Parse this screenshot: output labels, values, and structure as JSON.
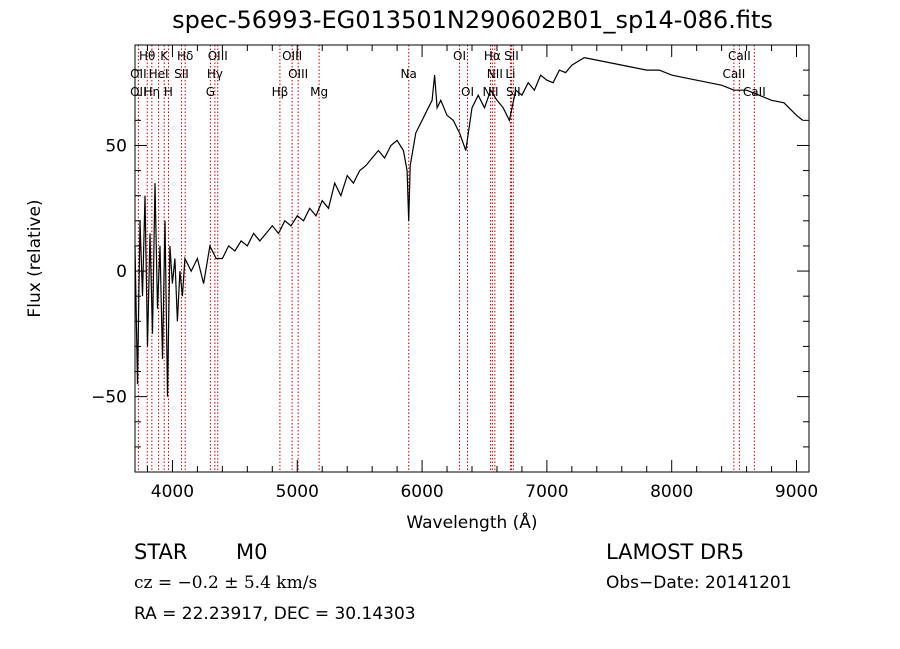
{
  "chart_data": {
    "type": "line",
    "title": "spec-56993-EG013501N290602B01_sp14-086.fits",
    "xlabel": "Wavelength (Å)",
    "ylabel": "Flux (relative)",
    "xlim": [
      3700,
      9100
    ],
    "ylim": [
      -80,
      90
    ],
    "xticks": [
      4000,
      5000,
      6000,
      7000,
      8000,
      9000
    ],
    "yticks": [
      -50,
      0,
      50
    ],
    "series": [
      {
        "x": [
          3700,
          3720,
          3740,
          3760,
          3780,
          3800,
          3820,
          3840,
          3860,
          3880,
          3900,
          3920,
          3940,
          3960,
          3980,
          4000,
          4020,
          4040,
          4060,
          4080,
          4100,
          4150,
          4200,
          4250,
          4300,
          4350,
          4400,
          4450,
          4500,
          4550,
          4600,
          4650,
          4700,
          4750,
          4800,
          4850,
          4900,
          4950,
          5000,
          5050,
          5100,
          5150,
          5200,
          5250,
          5300,
          5350,
          5400,
          5450,
          5500,
          5550,
          5600,
          5650,
          5700,
          5750,
          5800,
          5850,
          5880,
          5893,
          5905,
          5950,
          6000,
          6050,
          6080,
          6100,
          6120,
          6150,
          6200,
          6250,
          6300,
          6350,
          6400,
          6450,
          6500,
          6550,
          6600,
          6650,
          6700,
          6750,
          6800,
          6850,
          6900,
          6950,
          7000,
          7050,
          7100,
          7150,
          7200,
          7300,
          7400,
          7500,
          7600,
          7700,
          7800,
          7900,
          8000,
          8100,
          8200,
          8300,
          8400,
          8500,
          8600,
          8700,
          8800,
          8900,
          9000,
          9050
        ],
        "values": [
          10,
          -45,
          20,
          -10,
          30,
          -30,
          15,
          -25,
          35,
          -15,
          10,
          -35,
          20,
          -50,
          10,
          -5,
          5,
          -20,
          0,
          -10,
          5,
          0,
          5,
          -5,
          10,
          5,
          5,
          10,
          8,
          12,
          10,
          15,
          12,
          15,
          18,
          15,
          20,
          18,
          22,
          20,
          25,
          22,
          28,
          25,
          35,
          30,
          38,
          35,
          40,
          42,
          45,
          48,
          45,
          50,
          52,
          48,
          40,
          20,
          42,
          55,
          60,
          65,
          68,
          78,
          65,
          68,
          62,
          60,
          55,
          48,
          65,
          70,
          65,
          72,
          68,
          65,
          60,
          72,
          70,
          75,
          72,
          78,
          76,
          75,
          80,
          79,
          82,
          85,
          84,
          83,
          82,
          81,
          80,
          80,
          78,
          77,
          76,
          75,
          74,
          72,
          72,
          70,
          68,
          67,
          62,
          60
        ]
      }
    ],
    "spectral_lines": [
      {
        "name": "Hθ",
        "wavelength": 3798,
        "row": 0
      },
      {
        "name": "K",
        "wavelength": 3934,
        "row": 0
      },
      {
        "name": "Hδ",
        "wavelength": 4102,
        "row": 0
      },
      {
        "name": "OIII",
        "wavelength": 4363,
        "row": 0
      },
      {
        "name": "OIII",
        "wavelength": 4959,
        "row": 0
      },
      {
        "name": "OI",
        "wavelength": 6300,
        "row": 0
      },
      {
        "name": "Hα",
        "wavelength": 6563,
        "row": 0
      },
      {
        "name": "SII",
        "wavelength": 6716,
        "row": 0
      },
      {
        "name": "CaII",
        "wavelength": 8542,
        "row": 0
      },
      {
        "name": "OII",
        "wavelength": 3727,
        "row": 1
      },
      {
        "name": "HeI",
        "wavelength": 3889,
        "row": 1
      },
      {
        "name": "SII",
        "wavelength": 4072,
        "row": 1
      },
      {
        "name": "Hγ",
        "wavelength": 4340,
        "row": 1
      },
      {
        "name": "OIII",
        "wavelength": 5007,
        "row": 1
      },
      {
        "name": "Na",
        "wavelength": 5893,
        "row": 1
      },
      {
        "name": "NII",
        "wavelength": 6583,
        "row": 1
      },
      {
        "name": "Li",
        "wavelength": 6708,
        "row": 1
      },
      {
        "name": "CaII",
        "wavelength": 8498,
        "row": 1
      },
      {
        "name": "OII",
        "wavelength": 3727,
        "row": 2
      },
      {
        "name": "Hη",
        "wavelength": 3835,
        "row": 2
      },
      {
        "name": "H",
        "wavelength": 3968,
        "row": 2
      },
      {
        "name": "G",
        "wavelength": 4304,
        "row": 2
      },
      {
        "name": "Hβ",
        "wavelength": 4861,
        "row": 2
      },
      {
        "name": "Mg",
        "wavelength": 5175,
        "row": 2
      },
      {
        "name": "OI",
        "wavelength": 6364,
        "row": 2
      },
      {
        "name": "NII",
        "wavelength": 6548,
        "row": 2
      },
      {
        "name": "SII",
        "wavelength": 6731,
        "row": 2
      },
      {
        "name": "CaII",
        "wavelength": 8662,
        "row": 2
      }
    ]
  },
  "info": {
    "class": "STAR",
    "subclass": "M0",
    "survey": "LAMOST  DR5",
    "cz": "cz = −0.2 ± 5.4 km/s",
    "obs_date": "Obs−Date: 20141201",
    "coords": "RA =  22.23917, DEC =  30.14303"
  }
}
